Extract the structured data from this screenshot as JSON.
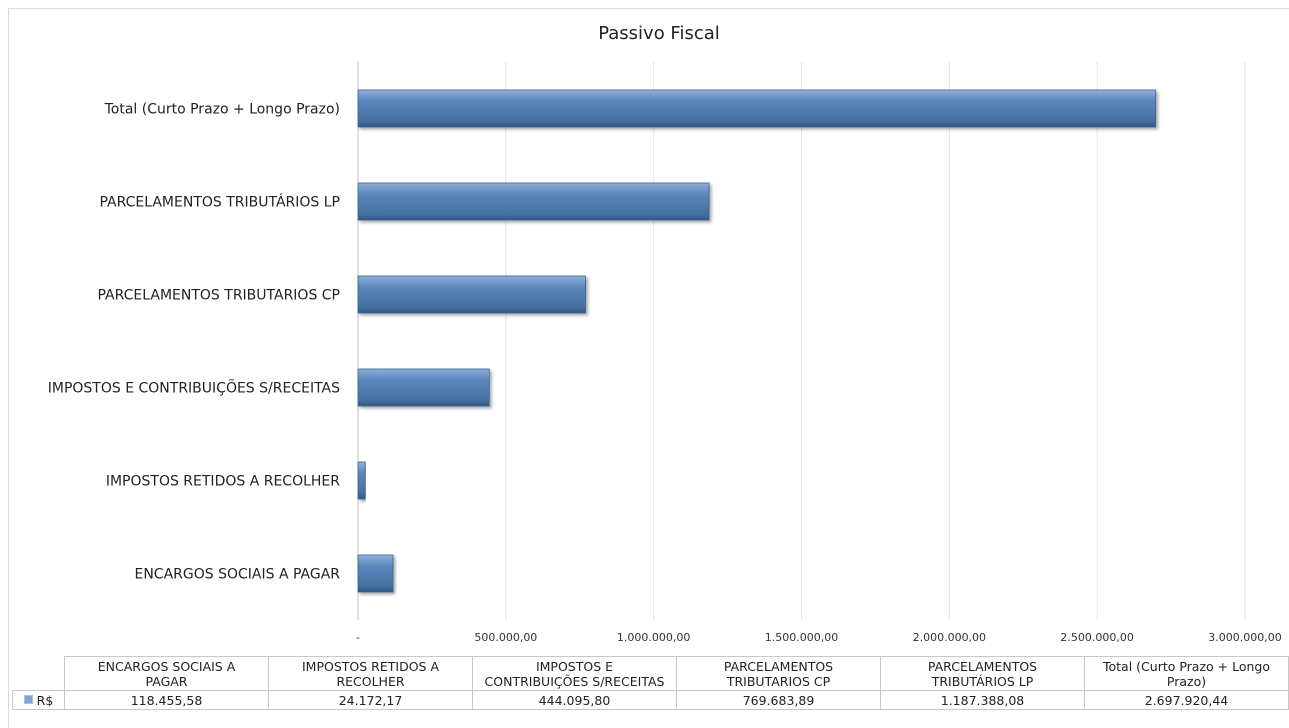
{
  "chart_data": {
    "type": "bar",
    "orientation": "horizontal",
    "title": "Passivo Fiscal",
    "categories": [
      "ENCARGOS SOCIAIS A PAGAR",
      "IMPOSTOS RETIDOS A RECOLHER",
      "IMPOSTOS E CONTRIBUIÇÕES S/RECEITAS",
      "PARCELAMENTOS TRIBUTARIOS CP",
      "PARCELAMENTOS TRIBUTÁRIOS LP",
      "Total (Curto Prazo + Longo Prazo)"
    ],
    "series": [
      {
        "name": "R$",
        "values": [
          118455.58,
          24172.17,
          444095.8,
          769683.89,
          1187388.08,
          2697920.44
        ]
      }
    ],
    "xlim": [
      0,
      3000000
    ],
    "x_ticks": [
      "-",
      "500.000,00",
      "1.000.000,00",
      "1.500.000,00",
      "2.000.000,00",
      "2.500.000,00",
      "3.000.000,00"
    ],
    "grid": true,
    "bar_color": "#4f81bd"
  },
  "table": {
    "headers": [
      [
        "ENCARGOS SOCIAIS A",
        "PAGAR"
      ],
      [
        "IMPOSTOS RETIDOS A",
        "RECOLHER"
      ],
      [
        "IMPOSTOS E",
        "CONTRIBUIÇÕES S/RECEITAS"
      ],
      [
        "PARCELAMENTOS",
        "TRIBUTARIOS CP"
      ],
      [
        "PARCELAMENTOS",
        "TRIBUTÁRIOS LP"
      ],
      [
        "Total (Curto Prazo + Longo",
        "Prazo)"
      ]
    ],
    "series_label": "R$",
    "values": [
      "118.455,58",
      "24.172,17",
      "444.095,80",
      "769.683,89",
      "1.187.388,08",
      "2.697.920,44"
    ]
  }
}
